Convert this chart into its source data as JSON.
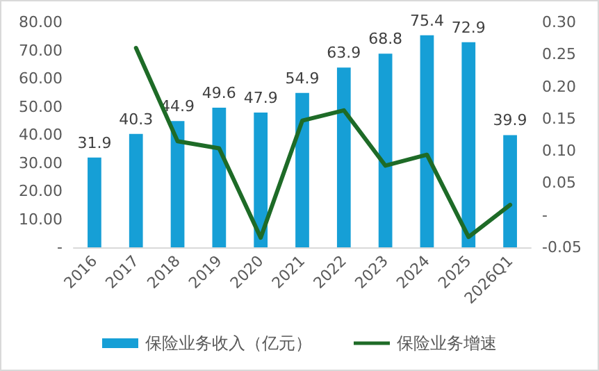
{
  "chart_data": {
    "type": "bar",
    "categories": [
      "2016",
      "2017",
      "2018",
      "2019",
      "2020",
      "2021",
      "2022",
      "2023",
      "2024",
      "2025",
      "2026Q1"
    ],
    "series": [
      {
        "name": "保险业务收入（亿元）",
        "color": "#169fd6",
        "values": [
          31.9,
          40.3,
          44.9,
          49.6,
          47.9,
          54.9,
          63.9,
          68.8,
          75.4,
          72.9,
          39.9
        ],
        "value_labels": [
          "31.9",
          "40.3",
          "44.9",
          "49.6",
          "47.9",
          "54.9",
          "63.9",
          "68.8",
          "75.4",
          "72.9",
          "39.9"
        ]
      },
      {
        "name": "保险业务增速",
        "type": "line",
        "axis": "y2",
        "color": "#1e6b27",
        "values": [
          null,
          0.26,
          0.115,
          0.104,
          -0.035,
          0.147,
          0.163,
          0.077,
          0.094,
          -0.034,
          0.016
        ]
      }
    ],
    "ylim": [
      0,
      80
    ],
    "yticks": [
      {
        "value": 0,
        "label": "-"
      },
      {
        "value": 10,
        "label": "10.00"
      },
      {
        "value": 20,
        "label": "20.00"
      },
      {
        "value": 30,
        "label": "30.00"
      },
      {
        "value": 40,
        "label": "40.00"
      },
      {
        "value": 50,
        "label": "50.00"
      },
      {
        "value": 60,
        "label": "60.00"
      },
      {
        "value": 70,
        "label": "70.00"
      },
      {
        "value": 80,
        "label": "80.00"
      }
    ],
    "y2lim": [
      -0.05,
      0.3
    ],
    "y2ticks": [
      -0.05,
      {
        "value": 0,
        "label": "-"
      },
      0.05,
      {
        "value": 0.1,
        "label": "0.10"
      },
      0.15,
      {
        "value": 0.2,
        "label": "0.20"
      },
      0.25,
      {
        "value": 0.3,
        "label": "0.30"
      }
    ],
    "legend": "bottom",
    "grid": false,
    "marker": "none"
  }
}
